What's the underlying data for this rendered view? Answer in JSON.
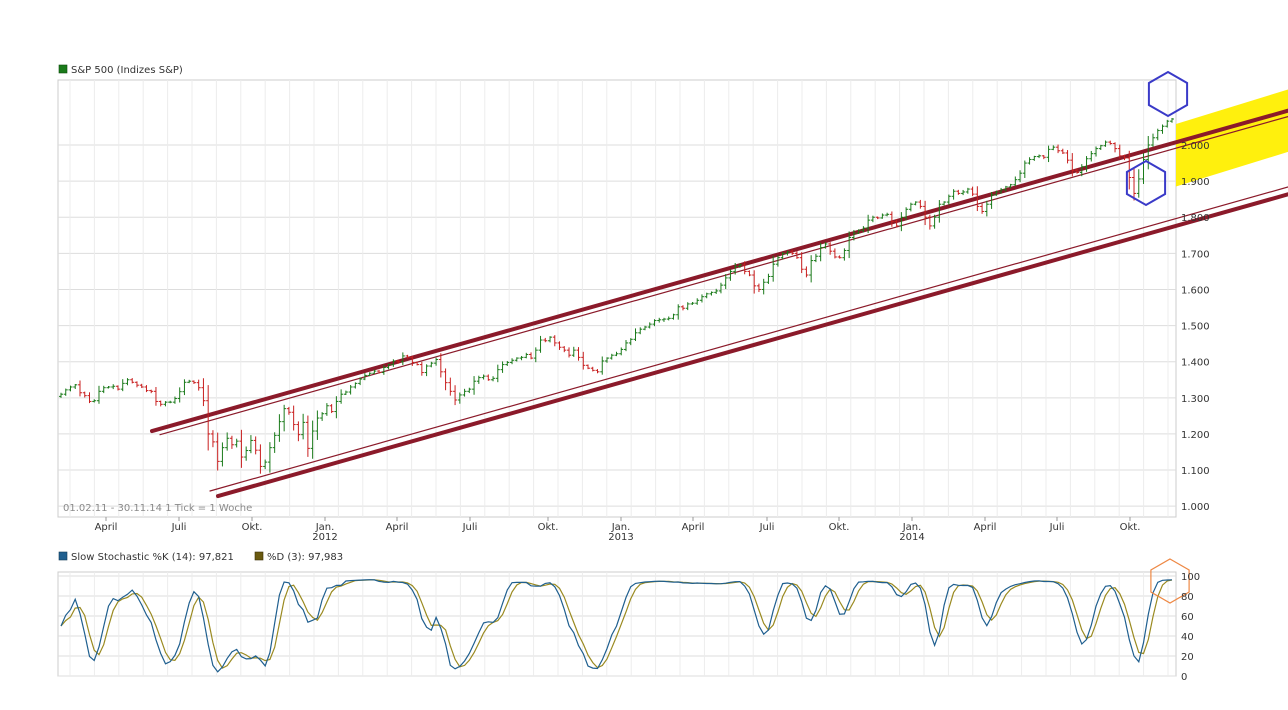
{
  "colors": {
    "up": "#1a7a1a",
    "down": "#c81e1e",
    "channel": "#8b1a2a",
    "highlight": "#ffef00",
    "hexagon_blue": "#3a3ac8",
    "hexagon_orange": "#ee8844",
    "stoch_k": "#1f5f8f",
    "stoch_d": "#9a8a20",
    "grid": "#dddddd"
  },
  "main": {
    "legend": "S&P 500 (Indizes S&P)",
    "range_note": "01.02.11 - 30.11.14   1 Tick = 1 Woche"
  },
  "stoch": {
    "legend_k": "Slow Stochastic %K (14): 97,821",
    "legend_d": "%D (3): 97,983"
  },
  "chart_data": [
    {
      "type": "ohlc",
      "title": "S&P 500 (Indizes S&P)",
      "period": "01.02.11 - 30.11.14",
      "interval": "1 Woche",
      "ylim": [
        970,
        2180
      ],
      "y_ticks": [
        1000,
        1100,
        1200,
        1300,
        1400,
        1500,
        1600,
        1700,
        1800,
        1900,
        2000
      ],
      "y_tick_labels": [
        "1.000",
        "1.100",
        "1.200",
        "1.300",
        "1.400",
        "1.500",
        "1.600",
        "1.700",
        "1.800",
        "1.900",
        "2.000"
      ],
      "x_ticks": [
        {
          "label": "April",
          "year": ""
        },
        {
          "label": "Juli",
          "year": ""
        },
        {
          "label": "Okt.",
          "year": ""
        },
        {
          "label": "Jan.",
          "year": "2012"
        },
        {
          "label": "April",
          "year": ""
        },
        {
          "label": "Juli",
          "year": ""
        },
        {
          "label": "Okt.",
          "year": ""
        },
        {
          "label": "Jan.",
          "year": "2013"
        },
        {
          "label": "April",
          "year": ""
        },
        {
          "label": "Juli",
          "year": ""
        },
        {
          "label": "Okt.",
          "year": ""
        },
        {
          "label": "Jan.",
          "year": "2014"
        },
        {
          "label": "April",
          "year": ""
        },
        {
          "label": "Juli",
          "year": ""
        },
        {
          "label": "Okt.",
          "year": ""
        }
      ],
      "weekly_closes": [
        1310,
        1322,
        1330,
        1336,
        1314,
        1306,
        1290,
        1292,
        1318,
        1328,
        1330,
        1332,
        1324,
        1340,
        1350,
        1343,
        1335,
        1330,
        1320,
        1318,
        1290,
        1282,
        1288,
        1288,
        1298,
        1317,
        1343,
        1346,
        1342,
        1328,
        1292,
        1200,
        1178,
        1124,
        1162,
        1188,
        1170,
        1180,
        1136,
        1154,
        1182,
        1155,
        1110,
        1122,
        1162,
        1196,
        1234,
        1270,
        1260,
        1226,
        1198,
        1232,
        1160,
        1208,
        1244,
        1256,
        1278,
        1262,
        1290,
        1310,
        1316,
        1330,
        1340,
        1352,
        1362,
        1368,
        1374,
        1370,
        1384,
        1392,
        1402,
        1400,
        1416,
        1412,
        1398,
        1392,
        1370,
        1388,
        1396,
        1406,
        1372,
        1342,
        1318,
        1294,
        1308,
        1318,
        1324,
        1346,
        1356,
        1360,
        1350,
        1354,
        1378,
        1392,
        1398,
        1404,
        1410,
        1412,
        1420,
        1410,
        1432,
        1460,
        1458,
        1468,
        1452,
        1440,
        1432,
        1418,
        1432,
        1412,
        1390,
        1382,
        1376,
        1372,
        1402,
        1410,
        1418,
        1422,
        1434,
        1452,
        1462,
        1480,
        1490,
        1496,
        1504,
        1514,
        1516,
        1518,
        1520,
        1530,
        1552,
        1548,
        1560,
        1562,
        1570,
        1580,
        1588,
        1592,
        1596,
        1612,
        1632,
        1650,
        1664,
        1668,
        1650,
        1640,
        1610,
        1600,
        1620,
        1636,
        1670,
        1688,
        1700,
        1704,
        1700,
        1688,
        1656,
        1640,
        1680,
        1692,
        1716,
        1726,
        1706,
        1690,
        1688,
        1708,
        1744,
        1756,
        1764,
        1770,
        1792,
        1800,
        1798,
        1806,
        1808,
        1788,
        1776,
        1800,
        1822,
        1836,
        1842,
        1830,
        1800,
        1776,
        1800,
        1836,
        1842,
        1858,
        1872,
        1866,
        1870,
        1878,
        1864,
        1830,
        1816,
        1836,
        1862,
        1870,
        1876,
        1884,
        1890,
        1904,
        1922,
        1950,
        1960,
        1968,
        1970,
        1966,
        1988,
        1994,
        1984,
        1978,
        1958,
        1930,
        1924,
        1940,
        1962,
        1976,
        1990,
        1998,
        2008,
        2004,
        1990,
        1970,
        1964,
        1910,
        1866,
        1906,
        1960,
        2000,
        2020,
        2040,
        2052,
        2066,
        2072
      ]
    },
    {
      "type": "line",
      "title": "Slow Stochastic",
      "ylim": [
        0,
        100
      ],
      "y_ticks": [
        0,
        20,
        40,
        60,
        80,
        100
      ],
      "series": [
        {
          "name": "Slow Stochastic %K (14)",
          "last": 97.821
        },
        {
          "name": "%D (3)",
          "last": 97.983
        }
      ]
    }
  ]
}
